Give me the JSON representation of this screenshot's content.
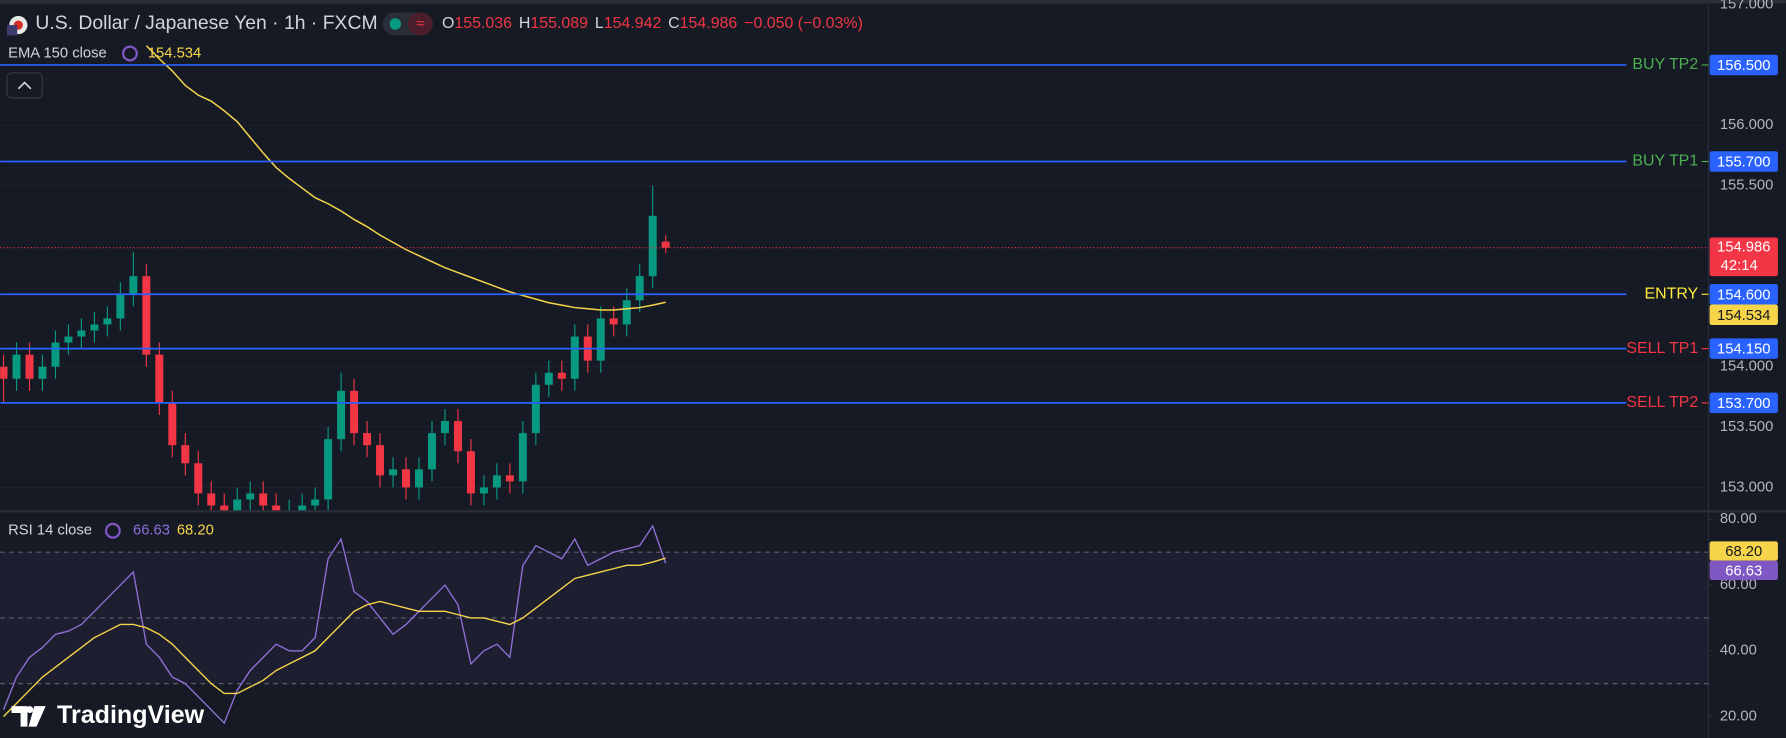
{
  "chart_data": [
    {
      "type": "candlestick",
      "title": "U.S. Dollar / Japanese Yen · 1h · FXCM",
      "ohlc": [
        {
          "label": "O",
          "value": "155.036"
        },
        {
          "label": "H",
          "value": "155.089"
        },
        {
          "label": "L",
          "value": "154.942"
        },
        {
          "label": "C",
          "value": "154.986"
        }
      ],
      "change": "−0.050 (−0.03%)",
      "countdown": "42:14",
      "open": [
        154.0,
        153.9,
        154.1,
        153.9,
        154.0,
        154.2,
        154.25,
        154.3,
        154.35,
        154.4,
        154.6,
        154.75,
        154.1,
        153.7,
        153.35,
        153.2,
        152.95,
        152.85,
        152.8,
        152.9,
        152.95,
        152.85,
        152.8,
        152.8,
        152.85,
        152.9,
        153.4,
        153.8,
        153.45,
        153.35,
        153.1,
        153.15,
        153.0,
        153.15,
        153.45,
        153.55,
        153.3,
        152.95,
        153.0,
        153.1,
        153.05,
        153.45,
        153.85,
        153.95,
        153.9,
        154.25,
        154.05,
        154.4,
        154.35,
        154.55,
        154.75,
        155.036
      ],
      "high": [
        154.1,
        154.2,
        154.2,
        154.1,
        154.3,
        154.35,
        154.4,
        154.45,
        154.5,
        154.7,
        154.95,
        154.85,
        154.2,
        153.8,
        153.45,
        153.3,
        153.05,
        152.95,
        153.0,
        153.05,
        153.05,
        152.95,
        152.9,
        152.95,
        153.0,
        153.5,
        153.95,
        153.9,
        153.55,
        153.45,
        153.25,
        153.25,
        153.25,
        153.55,
        153.65,
        153.65,
        153.4,
        153.1,
        153.2,
        153.2,
        153.55,
        153.95,
        154.05,
        154.05,
        154.35,
        154.35,
        154.5,
        154.5,
        154.65,
        154.85,
        155.5,
        155.089
      ],
      "low": [
        153.7,
        153.8,
        153.8,
        153.8,
        153.9,
        154.1,
        154.15,
        154.2,
        154.25,
        154.3,
        154.5,
        154.0,
        153.6,
        153.25,
        153.1,
        152.85,
        152.75,
        152.7,
        152.7,
        152.8,
        152.75,
        152.7,
        152.7,
        152.7,
        152.75,
        152.8,
        153.3,
        153.35,
        153.25,
        153.0,
        153.0,
        152.9,
        152.9,
        153.05,
        153.35,
        153.2,
        152.85,
        152.85,
        152.9,
        152.95,
        152.95,
        153.35,
        153.75,
        153.8,
        153.8,
        153.95,
        153.95,
        154.25,
        154.25,
        154.45,
        154.65,
        154.942
      ],
      "close": [
        153.9,
        154.1,
        153.9,
        154.0,
        154.2,
        154.25,
        154.3,
        154.35,
        154.4,
        154.6,
        154.75,
        154.1,
        153.7,
        153.35,
        153.2,
        152.95,
        152.85,
        152.8,
        152.9,
        152.95,
        152.85,
        152.8,
        152.8,
        152.85,
        152.9,
        153.4,
        153.8,
        153.45,
        153.35,
        153.1,
        153.15,
        153.0,
        153.15,
        153.45,
        153.55,
        153.3,
        152.95,
        153.0,
        153.1,
        153.05,
        153.45,
        153.85,
        153.95,
        153.9,
        154.25,
        154.05,
        154.4,
        154.35,
        154.55,
        154.75,
        155.25,
        154.986
      ],
      "up_color": "#089981",
      "down_color": "#f23645",
      "series": [
        {
          "name": "EMA 150 close",
          "color": "#f7d54a",
          "values": [
            null,
            null,
            null,
            null,
            null,
            null,
            null,
            null,
            null,
            null,
            null,
            156.66,
            156.55,
            156.45,
            156.33,
            156.25,
            156.2,
            156.12,
            156.03,
            155.9,
            155.77,
            155.65,
            155.56,
            155.48,
            155.4,
            155.35,
            155.29,
            155.22,
            155.16,
            155.09,
            155.03,
            154.97,
            154.92,
            154.87,
            154.82,
            154.78,
            154.74,
            154.7,
            154.66,
            154.62,
            154.59,
            154.56,
            154.53,
            154.51,
            154.49,
            154.48,
            154.47,
            154.47,
            154.48,
            154.49,
            154.51,
            154.534
          ]
        }
      ],
      "levels": [
        {
          "label": "BUY TP2",
          "value": 156.5,
          "value_label": "156.500",
          "color": "#4caf50"
        },
        {
          "label": "BUY TP1",
          "value": 155.7,
          "value_label": "155.700",
          "color": "#4caf50"
        },
        {
          "label": "ENTRY",
          "value": 154.6,
          "value_label": "154.600",
          "color": "#ffeb3b"
        },
        {
          "label": "SELL TP1",
          "value": 154.15,
          "value_label": "154.150",
          "color": "#f23645"
        },
        {
          "label": "SELL TP2",
          "value": 153.7,
          "value_label": "153.700",
          "color": "#f23645"
        }
      ],
      "level_line_color": "#2962ff",
      "ylim": [
        152.811,
        157.038
      ],
      "yticks": [
        {
          "value": 157,
          "label": "157.000"
        },
        {
          "value": 156,
          "label": "156.000"
        },
        {
          "value": 155.5,
          "label": "155.500"
        },
        {
          "value": 154,
          "label": "154.000"
        },
        {
          "value": 153.5,
          "label": "153.500"
        },
        {
          "value": 153,
          "label": "153.000"
        }
      ],
      "grid": true
    },
    {
      "type": "line",
      "title": "RSI 14 close",
      "series": [
        {
          "color": "#8e6fd6",
          "values": [
            22,
            32,
            38,
            41,
            45,
            46,
            48,
            52,
            56,
            60,
            64,
            42,
            38,
            32,
            30,
            26,
            22,
            18,
            28,
            34,
            38,
            42,
            40,
            40,
            44,
            68,
            74,
            58,
            55,
            50,
            45,
            48,
            52,
            56,
            60,
            54,
            36,
            40,
            42,
            38,
            66,
            72,
            70,
            68,
            74,
            66,
            68,
            70,
            71,
            72,
            78,
            66.63
          ]
        },
        {
          "color": "#f7d54a",
          "last_label": "68.20",
          "values": [
            20,
            24,
            28,
            32,
            35,
            38,
            41,
            44,
            46,
            48,
            48,
            47,
            45,
            42,
            38,
            34,
            30,
            27,
            27,
            29,
            31,
            34,
            36,
            38,
            40,
            44,
            48,
            52,
            54,
            55,
            54,
            53,
            52,
            52,
            52,
            51,
            50,
            50,
            49,
            48,
            50,
            53,
            56,
            59,
            62,
            63,
            64,
            65,
            66,
            66,
            67,
            68.2
          ]
        }
      ],
      "bands": [
        70,
        50,
        30
      ],
      "ylim": [
        13.45,
        82.08
      ],
      "yticks": [
        {
          "value": 80,
          "label": "80.00"
        },
        {
          "value": 60,
          "label": "60.00"
        },
        {
          "value": 40,
          "label": "40.00"
        },
        {
          "value": 20,
          "label": "20.00"
        }
      ]
    }
  ],
  "watermark": "TradingView"
}
